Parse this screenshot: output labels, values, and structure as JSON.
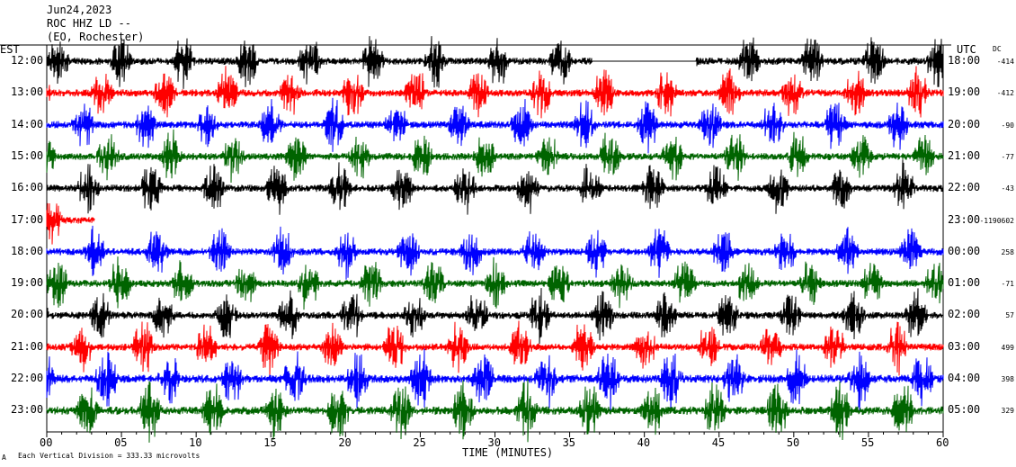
{
  "header": {
    "line1": "Jun24,2023",
    "line2": "ROC HHZ LD --",
    "line3": "(EO, Rochester)"
  },
  "left_axis": {
    "title": "EST"
  },
  "right_axis": {
    "title": "UTC"
  },
  "dc_axis": {
    "title": "DC"
  },
  "footer": {
    "xlabel": "TIME (MINUTES)",
    "scale_note": "Each Vertical Division = 333.33 microvolts",
    "corner_mark": "A"
  },
  "chart_data": {
    "type": "line",
    "title": "Jun24,2023",
    "xlabel": "TIME (MINUTES)",
    "x_ticks": [
      "00",
      "05",
      "10",
      "15",
      "20",
      "25",
      "30",
      "35",
      "40",
      "45",
      "50",
      "55",
      "60"
    ],
    "xlim": [
      0,
      60
    ],
    "trace_colors": [
      "#000000",
      "#ff0000",
      "#0000ff",
      "#006400"
    ],
    "rows": [
      {
        "est": "12:00",
        "utc": "18:00",
        "dc": "-414",
        "color": "#000000"
      },
      {
        "est": "13:00",
        "utc": "19:00",
        "dc": "-412",
        "color": "#ff0000"
      },
      {
        "est": "14:00",
        "utc": "20:00",
        "dc": "-90",
        "color": "#0000ff"
      },
      {
        "est": "15:00",
        "utc": "21:00",
        "dc": "-77",
        "color": "#006400"
      },
      {
        "est": "16:00",
        "utc": "22:00",
        "dc": "-43",
        "color": "#000000"
      },
      {
        "est": "17:00",
        "utc": "23:00",
        "dc": "-1190602",
        "color": "#ff0000"
      },
      {
        "est": "18:00",
        "utc": "00:00",
        "dc": "258",
        "color": "#0000ff"
      },
      {
        "est": "19:00",
        "utc": "01:00",
        "dc": "-71",
        "color": "#006400"
      },
      {
        "est": "20:00",
        "utc": "02:00",
        "dc": "57",
        "color": "#000000"
      },
      {
        "est": "21:00",
        "utc": "03:00",
        "dc": "499",
        "color": "#ff0000"
      },
      {
        "est": "22:00",
        "utc": "04:00",
        "dc": "398",
        "color": "#0000ff"
      },
      {
        "est": "23:00",
        "utc": "05:00",
        "dc": "329",
        "color": "#006400"
      }
    ]
  }
}
